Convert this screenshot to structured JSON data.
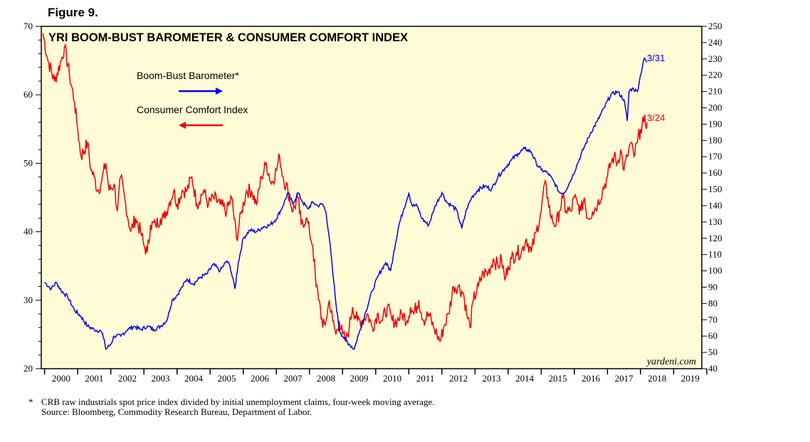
{
  "figure_label": "Figure 9.",
  "footnote": {
    "marker": "*",
    "note": "CRB raw industrials spot price index divided by initial unemployment claims, four-week moving average.",
    "source": "Source: Bloomberg, Commodity Research Bureau, Department of Labor."
  },
  "colors": {
    "plot_bg": "#fffbd6",
    "blue": "#0000ee",
    "red": "#ee0000"
  },
  "chart_data": {
    "type": "line",
    "title": "YRI BOOM-BUST BAROMETER & CONSUMER COMFORT INDEX",
    "watermark": "yardeni.com",
    "x_range": [
      1999.9,
      2019.85
    ],
    "x_tick_labels": [
      "2000",
      "2001",
      "2002",
      "2003",
      "2004",
      "2005",
      "2006",
      "2007",
      "2008",
      "2009",
      "2010",
      "2011",
      "2012",
      "2013",
      "2014",
      "2015",
      "2016",
      "2017",
      "2018",
      "2019"
    ],
    "left_axis": {
      "min": 20,
      "max": 70,
      "ticks": [
        20,
        30,
        40,
        50,
        60,
        70
      ]
    },
    "right_axis": {
      "min": 40,
      "max": 250,
      "ticks": [
        40,
        50,
        60,
        70,
        80,
        90,
        100,
        110,
        120,
        130,
        140,
        150,
        160,
        170,
        180,
        190,
        200,
        210,
        220,
        230,
        240,
        250
      ]
    },
    "series": [
      {
        "name": "Boom-Bust Barometer*",
        "axis": "right",
        "color": "#0000ee",
        "arrow": "right",
        "end_label": "3/31",
        "points": [
          [
            2000.0,
            93
          ],
          [
            2000.2,
            89
          ],
          [
            2000.35,
            93
          ],
          [
            2000.5,
            88
          ],
          [
            2000.7,
            84
          ],
          [
            2000.9,
            76
          ],
          [
            2001.1,
            72
          ],
          [
            2001.3,
            66
          ],
          [
            2001.5,
            64
          ],
          [
            2001.7,
            63
          ],
          [
            2001.8,
            58
          ],
          [
            2001.85,
            52
          ],
          [
            2002.0,
            55
          ],
          [
            2002.1,
            60
          ],
          [
            2002.3,
            60
          ],
          [
            2002.5,
            64
          ],
          [
            2002.7,
            66
          ],
          [
            2002.9,
            64
          ],
          [
            2003.1,
            66
          ],
          [
            2003.3,
            64
          ],
          [
            2003.5,
            66
          ],
          [
            2003.7,
            70
          ],
          [
            2003.85,
            82
          ],
          [
            2004.0,
            85
          ],
          [
            2004.15,
            90
          ],
          [
            2004.3,
            95
          ],
          [
            2004.5,
            92
          ],
          [
            2004.7,
            96
          ],
          [
            2004.9,
            98
          ],
          [
            2005.1,
            104
          ],
          [
            2005.3,
            100
          ],
          [
            2005.5,
            106
          ],
          [
            2005.6,
            103
          ],
          [
            2005.75,
            89
          ],
          [
            2005.85,
            105
          ],
          [
            2006.0,
            120
          ],
          [
            2006.2,
            125
          ],
          [
            2006.4,
            124
          ],
          [
            2006.6,
            127
          ],
          [
            2006.8,
            128
          ],
          [
            2007.0,
            132
          ],
          [
            2007.2,
            140
          ],
          [
            2007.35,
            148
          ],
          [
            2007.5,
            141
          ],
          [
            2007.65,
            148
          ],
          [
            2007.8,
            142
          ],
          [
            2007.95,
            138
          ],
          [
            2008.1,
            142
          ],
          [
            2008.25,
            140
          ],
          [
            2008.4,
            141
          ],
          [
            2008.5,
            136
          ],
          [
            2008.6,
            120
          ],
          [
            2008.7,
            100
          ],
          [
            2008.8,
            80
          ],
          [
            2008.9,
            64
          ],
          [
            2009.0,
            60
          ],
          [
            2009.2,
            55
          ],
          [
            2009.35,
            52
          ],
          [
            2009.5,
            62
          ],
          [
            2009.7,
            75
          ],
          [
            2009.9,
            88
          ],
          [
            2010.1,
            98
          ],
          [
            2010.3,
            105
          ],
          [
            2010.45,
            100
          ],
          [
            2010.55,
            112
          ],
          [
            2010.7,
            128
          ],
          [
            2010.85,
            138
          ],
          [
            2011.0,
            148
          ],
          [
            2011.1,
            140
          ],
          [
            2011.25,
            140
          ],
          [
            2011.4,
            132
          ],
          [
            2011.6,
            128
          ],
          [
            2011.8,
            140
          ],
          [
            2012.0,
            148
          ],
          [
            2012.15,
            142
          ],
          [
            2012.3,
            140
          ],
          [
            2012.45,
            137
          ],
          [
            2012.6,
            126
          ],
          [
            2012.75,
            138
          ],
          [
            2012.9,
            145
          ],
          [
            2013.1,
            150
          ],
          [
            2013.3,
            152
          ],
          [
            2013.5,
            150
          ],
          [
            2013.7,
            158
          ],
          [
            2013.9,
            163
          ],
          [
            2014.1,
            168
          ],
          [
            2014.3,
            172
          ],
          [
            2014.5,
            175
          ],
          [
            2014.7,
            173
          ],
          [
            2014.85,
            166
          ],
          [
            2015.0,
            162
          ],
          [
            2015.2,
            160
          ],
          [
            2015.4,
            154
          ],
          [
            2015.55,
            148
          ],
          [
            2015.7,
            148
          ],
          [
            2015.9,
            156
          ],
          [
            2016.1,
            166
          ],
          [
            2016.3,
            176
          ],
          [
            2016.5,
            185
          ],
          [
            2016.7,
            192
          ],
          [
            2016.9,
            200
          ],
          [
            2017.1,
            208
          ],
          [
            2017.3,
            210
          ],
          [
            2017.5,
            205
          ],
          [
            2017.6,
            192
          ],
          [
            2017.65,
            210
          ],
          [
            2017.75,
            212
          ],
          [
            2017.9,
            210
          ],
          [
            2018.0,
            220
          ],
          [
            2018.1,
            230
          ],
          [
            2018.2,
            228
          ]
        ]
      },
      {
        "name": "Consumer Comfort Index",
        "axis": "left",
        "color": "#ee0000",
        "arrow": "left",
        "end_label": "3/24",
        "points": [
          [
            1999.95,
            69
          ],
          [
            2000.1,
            65
          ],
          [
            2000.3,
            62
          ],
          [
            2000.5,
            65
          ],
          [
            2000.6,
            67
          ],
          [
            2000.75,
            63
          ],
          [
            2000.9,
            59
          ],
          [
            2001.0,
            55
          ],
          [
            2001.1,
            51
          ],
          [
            2001.3,
            53
          ],
          [
            2001.4,
            49
          ],
          [
            2001.5,
            48
          ],
          [
            2001.6,
            46
          ],
          [
            2001.7,
            47
          ],
          [
            2001.85,
            50
          ],
          [
            2001.95,
            46
          ],
          [
            2002.1,
            47
          ],
          [
            2002.2,
            43
          ],
          [
            2002.3,
            48
          ],
          [
            2002.45,
            44
          ],
          [
            2002.6,
            40
          ],
          [
            2002.75,
            42
          ],
          [
            2002.9,
            40
          ],
          [
            2003.0,
            38
          ],
          [
            2003.1,
            37
          ],
          [
            2003.2,
            41
          ],
          [
            2003.35,
            41
          ],
          [
            2003.5,
            42
          ],
          [
            2003.6,
            42
          ],
          [
            2003.75,
            44
          ],
          [
            2003.9,
            46
          ],
          [
            2004.0,
            44
          ],
          [
            2004.15,
            46
          ],
          [
            2004.3,
            46
          ],
          [
            2004.45,
            48
          ],
          [
            2004.6,
            44
          ],
          [
            2004.8,
            46
          ],
          [
            2004.95,
            44
          ],
          [
            2005.1,
            45
          ],
          [
            2005.3,
            44
          ],
          [
            2005.5,
            43
          ],
          [
            2005.65,
            45
          ],
          [
            2005.8,
            39
          ],
          [
            2005.95,
            43
          ],
          [
            2006.1,
            46
          ],
          [
            2006.25,
            46
          ],
          [
            2006.4,
            44
          ],
          [
            2006.55,
            48
          ],
          [
            2006.7,
            50
          ],
          [
            2006.85,
            47
          ],
          [
            2007.0,
            49
          ],
          [
            2007.1,
            51
          ],
          [
            2007.2,
            48
          ],
          [
            2007.35,
            46
          ],
          [
            2007.5,
            43
          ],
          [
            2007.65,
            45
          ],
          [
            2007.75,
            41
          ],
          [
            2007.9,
            42
          ],
          [
            2008.0,
            40
          ],
          [
            2008.1,
            38
          ],
          [
            2008.2,
            32
          ],
          [
            2008.3,
            30
          ],
          [
            2008.4,
            26
          ],
          [
            2008.5,
            27
          ],
          [
            2008.6,
            30
          ],
          [
            2008.7,
            27
          ],
          [
            2008.8,
            25
          ],
          [
            2008.9,
            27
          ],
          [
            2009.0,
            25
          ],
          [
            2009.1,
            24
          ],
          [
            2009.2,
            26
          ],
          [
            2009.3,
            29
          ],
          [
            2009.45,
            27
          ],
          [
            2009.6,
            27
          ],
          [
            2009.75,
            28
          ],
          [
            2009.9,
            26
          ],
          [
            2010.05,
            28
          ],
          [
            2010.2,
            27
          ],
          [
            2010.35,
            29
          ],
          [
            2010.5,
            27
          ],
          [
            2010.65,
            27
          ],
          [
            2010.8,
            28
          ],
          [
            2010.95,
            27
          ],
          [
            2011.05,
            29
          ],
          [
            2011.15,
            28
          ],
          [
            2011.3,
            30
          ],
          [
            2011.45,
            27
          ],
          [
            2011.6,
            28
          ],
          [
            2011.75,
            26
          ],
          [
            2011.85,
            25
          ],
          [
            2011.95,
            24
          ],
          [
            2012.05,
            26
          ],
          [
            2012.2,
            28
          ],
          [
            2012.35,
            32
          ],
          [
            2012.5,
            32
          ],
          [
            2012.65,
            31
          ],
          [
            2012.75,
            28
          ],
          [
            2012.85,
            26
          ],
          [
            2012.95,
            30
          ],
          [
            2013.1,
            32
          ],
          [
            2013.25,
            34
          ],
          [
            2013.4,
            34
          ],
          [
            2013.55,
            36
          ],
          [
            2013.7,
            35
          ],
          [
            2013.8,
            36
          ],
          [
            2013.9,
            33
          ],
          [
            2014.0,
            35
          ],
          [
            2014.1,
            36
          ],
          [
            2014.25,
            37
          ],
          [
            2014.4,
            37
          ],
          [
            2014.55,
            39
          ],
          [
            2014.7,
            37
          ],
          [
            2014.85,
            40
          ],
          [
            2015.0,
            43
          ],
          [
            2015.1,
            47
          ],
          [
            2015.2,
            45
          ],
          [
            2015.3,
            42
          ],
          [
            2015.45,
            41
          ],
          [
            2015.55,
            43
          ],
          [
            2015.65,
            45
          ],
          [
            2015.75,
            43
          ],
          [
            2015.9,
            43
          ],
          [
            2016.0,
            45
          ],
          [
            2016.1,
            44
          ],
          [
            2016.2,
            43
          ],
          [
            2016.3,
            45
          ],
          [
            2016.4,
            42
          ],
          [
            2016.55,
            43
          ],
          [
            2016.7,
            44
          ],
          [
            2016.85,
            46
          ],
          [
            2017.0,
            48
          ],
          [
            2017.1,
            50
          ],
          [
            2017.2,
            51
          ],
          [
            2017.3,
            50
          ],
          [
            2017.4,
            52
          ],
          [
            2017.5,
            49
          ],
          [
            2017.6,
            51
          ],
          [
            2017.7,
            53
          ],
          [
            2017.8,
            51
          ],
          [
            2017.9,
            53
          ],
          [
            2018.0,
            55
          ],
          [
            2018.1,
            56
          ],
          [
            2018.2,
            56
          ]
        ]
      }
    ]
  }
}
